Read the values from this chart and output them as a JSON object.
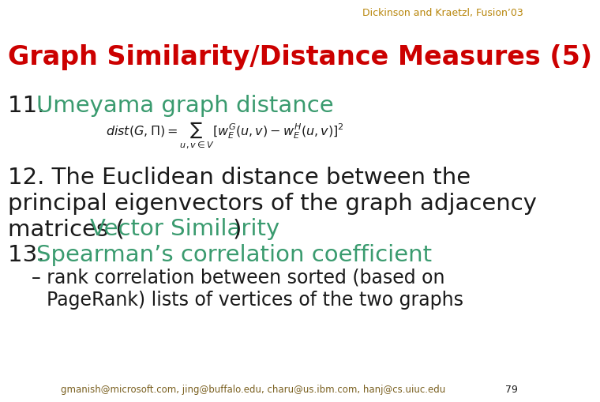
{
  "bg_color": "#ffffff",
  "header_text": "Dickinson and Kraetzl, Fusion’03",
  "header_color": "#b8860b",
  "title_text": "Graph Similarity/Distance Measures (5)",
  "title_color": "#cc0000",
  "item11_color": "#3a9b6f",
  "item12_color": "#3a9b6f",
  "item13_color": "#3a9b6f",
  "text_color": "#1a1a1a",
  "footer_color": "#7a6020",
  "font_family": "DejaVu Sans"
}
